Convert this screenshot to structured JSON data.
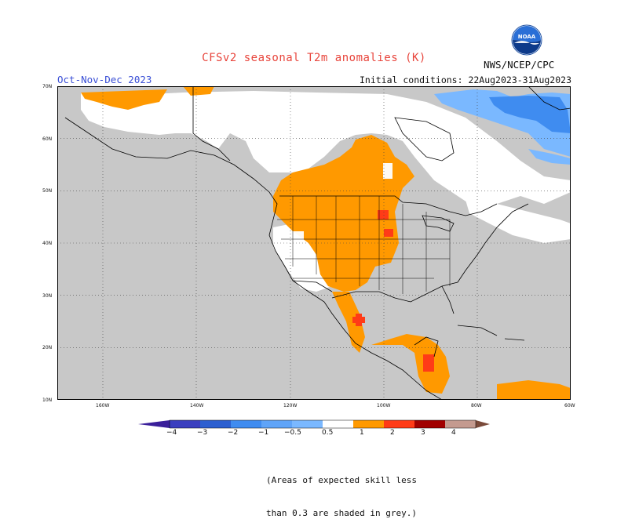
{
  "header": {
    "title": "CFSv2 seasonal T2m anomalies (K)",
    "period": "Oct-Nov-Dec 2023",
    "initial_conditions": "Initial conditions: 22Aug2023-31Aug2023",
    "agency": "NWS/NCEP/CPC",
    "logo_text": "NOAA"
  },
  "map": {
    "lat_labels": [
      "70N",
      "60N",
      "50N",
      "40N",
      "30N",
      "20N",
      "10N"
    ],
    "lon_labels": [
      "160W",
      "140W",
      "120W",
      "100W",
      "80W",
      "60W"
    ],
    "legend_lines": [
      "NWS/NCEP/CPC"
    ],
    "colors": {
      "skill_grey": "#c8c8c8",
      "land_ocean_white": "#ffffff",
      "pos_0_5_1": "#ff9900",
      "pos_1_2": "#ff3b17",
      "pos_2_3": "#a10000",
      "pos_3_4": "#c49a8f",
      "pos_gt4": "#7a4a3a",
      "neg_0_5_1": "#7ab8ff",
      "neg_1_2": "#3f8cf0",
      "neg_2_3": "#2c5fd0",
      "neg_3_4": "#3b3fbf",
      "neg_lt4": "#3a1f9a"
    }
  },
  "colorbar": {
    "labels": [
      "−4",
      "−3",
      "−2",
      "−1",
      "−0.5",
      "0.5",
      "1",
      "2",
      "3",
      "4"
    ]
  },
  "footnote": {
    "line1": "(Areas of expected skill less",
    "line2": "than 0.3 are shaded in grey.)"
  }
}
